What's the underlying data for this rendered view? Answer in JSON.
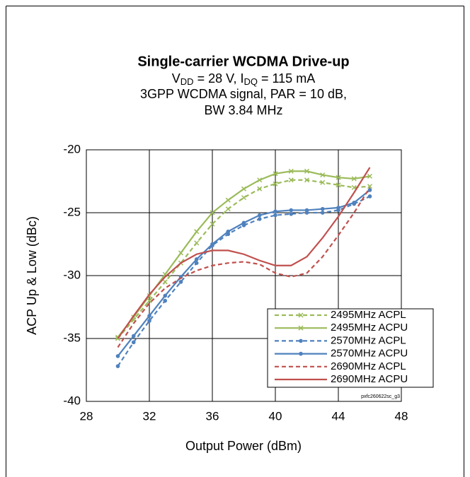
{
  "chart_data": {
    "type": "line",
    "title": "Single-carrier WCDMA Drive-up",
    "subtitle_segments": [
      "V",
      "DD",
      " = 28 V, I",
      "DQ",
      " = 115 mA"
    ],
    "subtitle_lines": [
      "3GPP WCDMA signal, PAR = 10 dB,",
      "BW 3.84 MHz"
    ],
    "annotation": "pxfc260622sc_g3",
    "x_label": "Output Power (dBm)",
    "y_label": "ACP Up & Low (dBc)",
    "x": [
      30,
      31,
      32,
      33,
      34,
      35,
      36,
      37,
      38,
      39,
      40,
      41,
      42,
      43,
      44,
      45,
      46
    ],
    "series": [
      {
        "name": "2495MHz ACPL",
        "color": "#9bbb59",
        "dash": true,
        "marker": "x",
        "values": [
          -35.0,
          -33.5,
          -32.0,
          -30.5,
          -29.0,
          -27.4,
          -25.9,
          -24.7,
          -23.8,
          -23.1,
          -22.7,
          -22.4,
          -22.4,
          -22.6,
          -22.8,
          -23.0,
          -22.9
        ]
      },
      {
        "name": "2495MHz ACPU",
        "color": "#9bbb59",
        "dash": false,
        "marker": "x",
        "values": [
          -34.9,
          -33.3,
          -31.6,
          -29.9,
          -28.2,
          -26.5,
          -25.0,
          -24.0,
          -23.1,
          -22.4,
          -21.9,
          -21.7,
          -21.7,
          -22.0,
          -22.2,
          -22.3,
          -22.1
        ]
      },
      {
        "name": "2570MHz ACPL",
        "color": "#4f81bd",
        "dash": true,
        "marker": "circle",
        "values": [
          -37.2,
          -35.3,
          -33.6,
          -32.0,
          -30.5,
          -29.0,
          -27.6,
          -26.7,
          -26.0,
          -25.5,
          -25.2,
          -25.1,
          -25.0,
          -25.0,
          -24.8,
          -24.3,
          -23.7
        ]
      },
      {
        "name": "2570MHz ACPU",
        "color": "#4f81bd",
        "dash": false,
        "marker": "circle",
        "values": [
          -36.4,
          -34.8,
          -33.2,
          -31.6,
          -30.1,
          -28.7,
          -27.5,
          -26.5,
          -25.8,
          -25.2,
          -24.9,
          -24.8,
          -24.8,
          -24.7,
          -24.6,
          -24.2,
          -23.2
        ]
      },
      {
        "name": "2690MHz ACPL",
        "color": "#c0504d",
        "dash": true,
        "marker": "none",
        "values": [
          -35.7,
          -33.8,
          -32.2,
          -31.0,
          -30.2,
          -29.6,
          -29.2,
          -29.0,
          -28.9,
          -29.1,
          -29.8,
          -30.1,
          -29.8,
          -28.5,
          -26.8,
          -25.0,
          -23.0
        ]
      },
      {
        "name": "2690MHz ACPU",
        "color": "#c0504d",
        "dash": false,
        "marker": "none",
        "values": [
          -35.0,
          -33.2,
          -31.5,
          -30.1,
          -29.0,
          -28.3,
          -28.0,
          -28.0,
          -28.3,
          -28.8,
          -29.2,
          -29.2,
          -28.5,
          -27.0,
          -25.3,
          -23.4,
          -21.4
        ]
      }
    ],
    "xlim": [
      28,
      48
    ],
    "xticks": [
      28,
      32,
      36,
      40,
      44,
      48
    ],
    "ylim": [
      -40,
      -20
    ],
    "yticks": [
      -40,
      -35,
      -30,
      -25,
      -20
    ],
    "grid": true,
    "legend": "lower right"
  }
}
